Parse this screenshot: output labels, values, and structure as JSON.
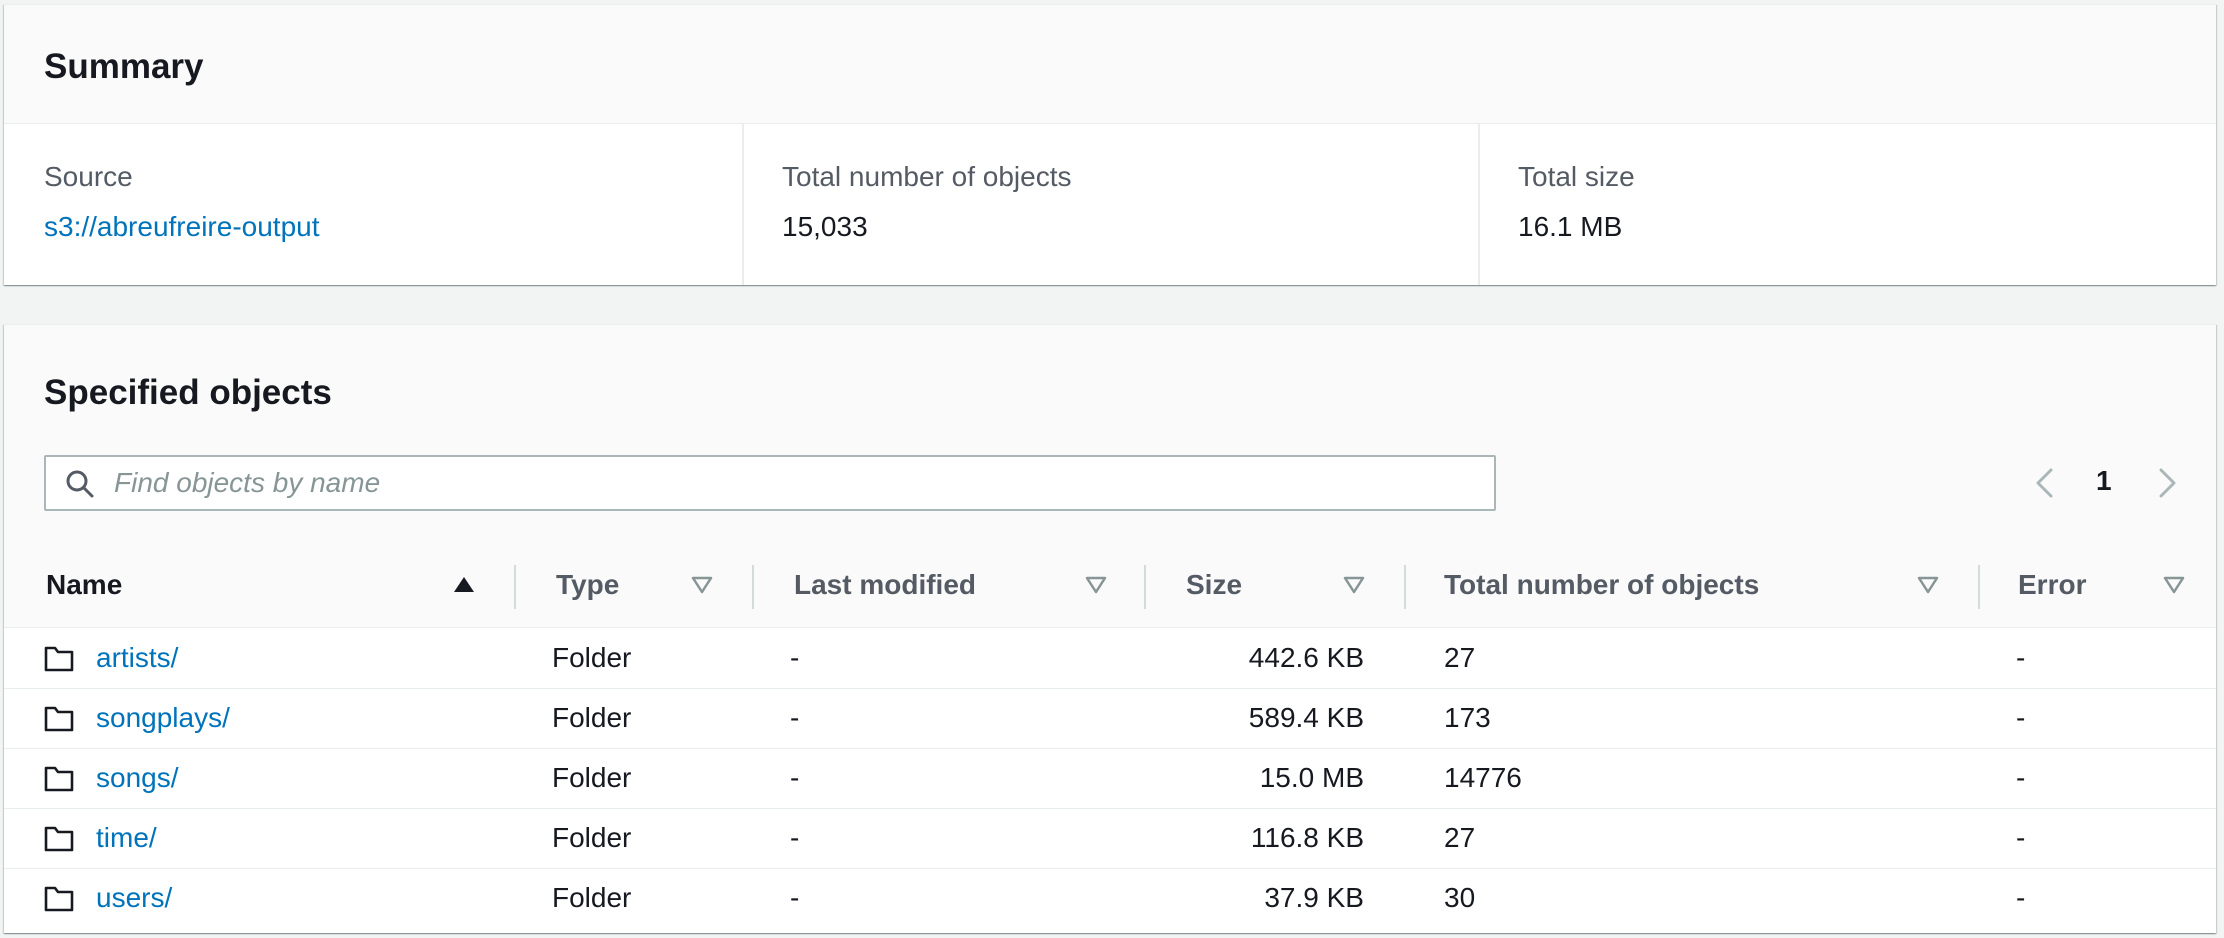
{
  "summary": {
    "title": "Summary",
    "source_label": "Source",
    "source_value": "s3://abreufreire-output",
    "objects_label": "Total number of objects",
    "objects_value": "15,033",
    "size_label": "Total size",
    "size_value": "16.1 MB"
  },
  "objects": {
    "title": "Specified objects",
    "search_placeholder": "Find objects by name",
    "search_value": "",
    "page_number": "1",
    "columns": [
      "Name",
      "Type",
      "Last modified",
      "Size",
      "Total number of objects",
      "Error"
    ],
    "sort": {
      "column": "Name",
      "direction": "ascending"
    },
    "rows": [
      {
        "name": "artists/",
        "type": "Folder",
        "last_modified": "-",
        "size": "442.6 KB",
        "count": "27",
        "error": "-"
      },
      {
        "name": "songplays/",
        "type": "Folder",
        "last_modified": "-",
        "size": "589.4 KB",
        "count": "173",
        "error": "-"
      },
      {
        "name": "songs/",
        "type": "Folder",
        "last_modified": "-",
        "size": "15.0 MB",
        "count": "14776",
        "error": "-"
      },
      {
        "name": "time/",
        "type": "Folder",
        "last_modified": "-",
        "size": "116.8 KB",
        "count": "27",
        "error": "-"
      },
      {
        "name": "users/",
        "type": "Folder",
        "last_modified": "-",
        "size": "37.9 KB",
        "count": "30",
        "error": "-"
      }
    ]
  },
  "colors": {
    "link": "#0073bb",
    "text": "#16191f",
    "label": "#545b64",
    "background": "#f2f3f3"
  },
  "icons": [
    "search-icon",
    "chevron-left-icon",
    "chevron-right-icon",
    "sort-ascending-icon",
    "sort-descending-icon",
    "folder-icon"
  ]
}
